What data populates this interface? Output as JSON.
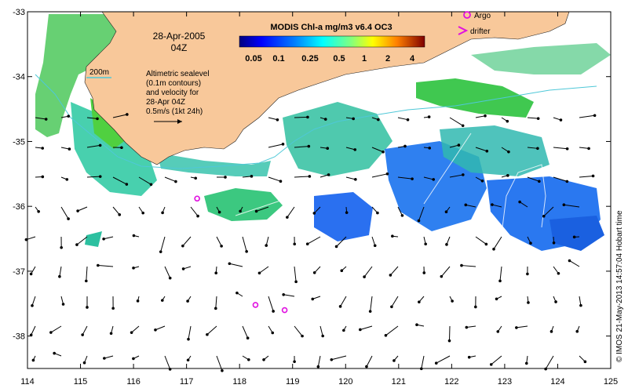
{
  "map": {
    "lon_ticks": [
      "114",
      "115",
      "116",
      "117",
      "118",
      "119",
      "120",
      "121",
      "122",
      "123",
      "124",
      "125"
    ],
    "lat_ticks": [
      "-33",
      "-34",
      "-35",
      "-36",
      "-37",
      "-38"
    ],
    "lon_range": [
      114,
      125
    ],
    "lat_range": [
      -33,
      -38.5
    ]
  },
  "date": {
    "line1": "28-Apr-2005",
    "line2": "04Z"
  },
  "isobath_label": "200m",
  "sealevel_note": {
    "l1": "Altimetric sealevel",
    "l2": "(0.1m contours)",
    "l3": "and velocity for",
    "l4": "28-Apr 04Z",
    "l5": "0.5m/s (1kt 24h)"
  },
  "colorbar": {
    "title": "MODIS Chl-a mg/m3 v6.4 OC3",
    "labels": [
      "0.05",
      "0.1",
      "0.25",
      "0.5",
      "1",
      "2",
      "4"
    ]
  },
  "legend": {
    "argo": "Argo",
    "drifter": "drifter"
  },
  "credit": "© IMOS 21-May-2013 14:57:04 Hobart time",
  "argo_floats": [
    {
      "lon": 117.2,
      "lat": -35.88
    },
    {
      "lon": 118.3,
      "lat": -37.52
    },
    {
      "lon": 118.85,
      "lat": -37.6
    }
  ],
  "colors": {
    "land": "#f8c89a",
    "isobath": "#4fc8d8",
    "argo": "#e010e0",
    "chl_low": "#2060ff",
    "chl_mid": "#18c8a8",
    "chl_high": "#50d040"
  }
}
